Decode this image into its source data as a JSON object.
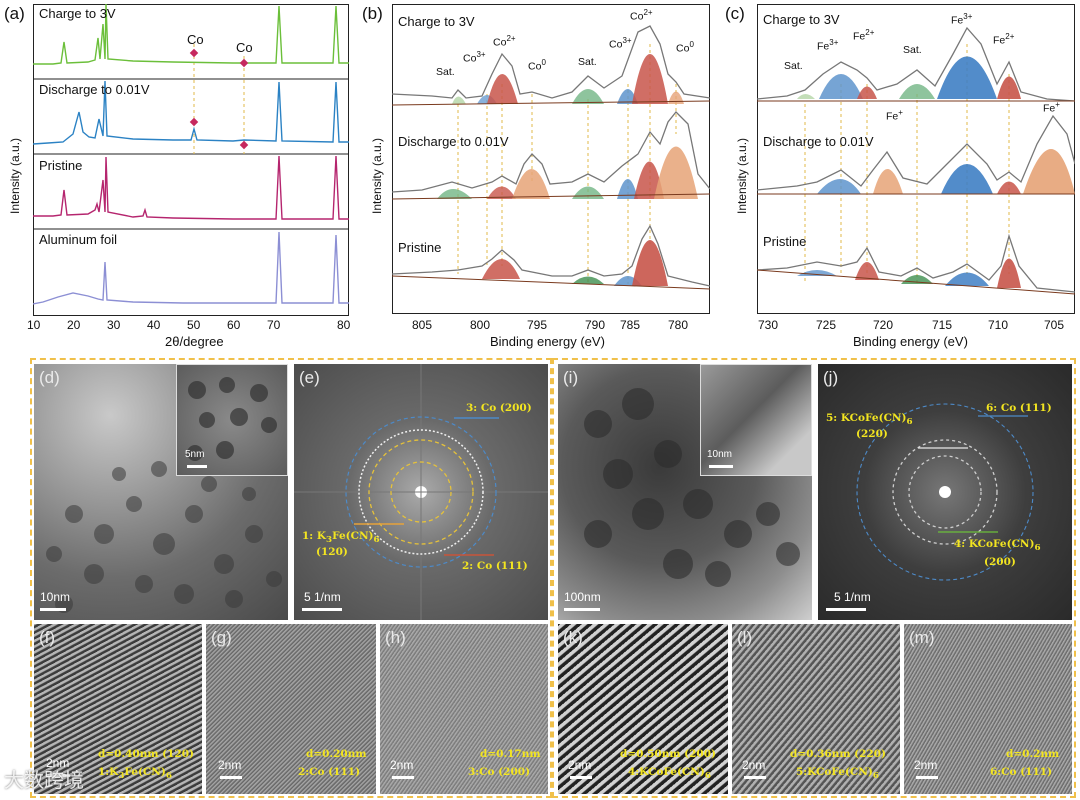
{
  "panel_letters": [
    "(a)",
    "(b)",
    "(c)",
    "(d)",
    "(e)",
    "(f)",
    "(g)",
    "(h)",
    "(i)",
    "(j)",
    "(k)",
    "(l)",
    "(m)"
  ],
  "panel_a": {
    "xlabel": "2θ/degree",
    "ylabel": "Intensity (a.u.)",
    "xticks": [
      "10",
      "20",
      "30",
      "40",
      "50",
      "60",
      "70",
      "80"
    ],
    "traces": [
      "Charge to 3V",
      "Discharge to 0.01V",
      "Pristine",
      "Aluminum foil"
    ],
    "co_markers": [
      "Co",
      "Co"
    ],
    "colors": {
      "charge": "#6bbf3a",
      "discharge": "#2b82c4",
      "pristine": "#b5256e",
      "foil": "#8c8fd4",
      "co": "#c6285e"
    }
  },
  "panel_b": {
    "xlabel": "Binding energy (eV)",
    "ylabel": "Intensity (a.u.)",
    "xticks": [
      "805",
      "800",
      "795",
      "790",
      "785",
      "780"
    ],
    "traces": [
      "Charge to 3V",
      "Discharge to 0.01V",
      "Pristine"
    ],
    "peak_labels": {
      "sat1": "Sat.",
      "co3_1": "Co",
      "co2_1": "Co",
      "co0_1": "Co",
      "sat2": "Sat.",
      "co3_2": "Co",
      "co2_2": "Co",
      "co0_2": "Co"
    },
    "superscripts": {
      "co3": "3+",
      "co2": "2+",
      "co0": "0"
    }
  },
  "panel_c": {
    "xlabel": "Binding energy (eV)",
    "ylabel": "Intensity (a.u.)",
    "xticks": [
      "730",
      "725",
      "720",
      "715",
      "710",
      "705"
    ],
    "traces": [
      "Charge to 3V",
      "Discharge to 0.01V",
      "Pristine"
    ],
    "peak_labels": {
      "sat1": "Sat.",
      "fe3_1": "Fe",
      "fe2_1": "Fe",
      "sat2": "Sat.",
      "fe3_2": "Fe",
      "fe2_2": "Fe",
      "fep_1": "Fe",
      "fep_2": "Fe"
    },
    "superscripts": {
      "fe3": "3+",
      "fe2": "2+",
      "fep": "+"
    }
  },
  "tem": {
    "d": {
      "scale": "10nm",
      "inset_scale": "5nm"
    },
    "e": {
      "scale": "5 1/nm",
      "ring1": "1: K",
      "ring1_tail": "Fe(CN)",
      "ring1_hkl": "(120)",
      "ring2": "2: Co (111)",
      "ring3": "3: Co (200)"
    },
    "f": {
      "scale": "2nm",
      "d": "d=0.40nm (120)",
      "phase": "1:K",
      "phase_tail": "Fe(CN)"
    },
    "g": {
      "scale": "2nm",
      "d": "d=0.20nm",
      "phase": "2:Co (111)"
    },
    "h": {
      "scale": "2nm",
      "d": "d=0.17nm",
      "phase": "3:Co (200)"
    },
    "i": {
      "scale": "100nm",
      "inset_scale": "10nm"
    },
    "j": {
      "scale": "5 1/nm",
      "ring5": "5: KCoFe(CN)",
      "ring5_hkl": "(220)",
      "ring6": "6: Co (111)",
      "ring4": "4: KCoFe(CN)",
      "ring4_hkl": "(200)"
    },
    "k": {
      "scale": "2nm",
      "d": "d=0.50nm (200)",
      "phase": "4:KCoFe(CN)"
    },
    "l": {
      "scale": "2nm",
      "d": "d=0.36nm (220)",
      "phase": "5:KCoFe(CN)"
    },
    "m": {
      "scale": "2nm",
      "d": "d=0.2nm",
      "phase": "6:Co (111)"
    }
  },
  "watermark": "大数跨境"
}
